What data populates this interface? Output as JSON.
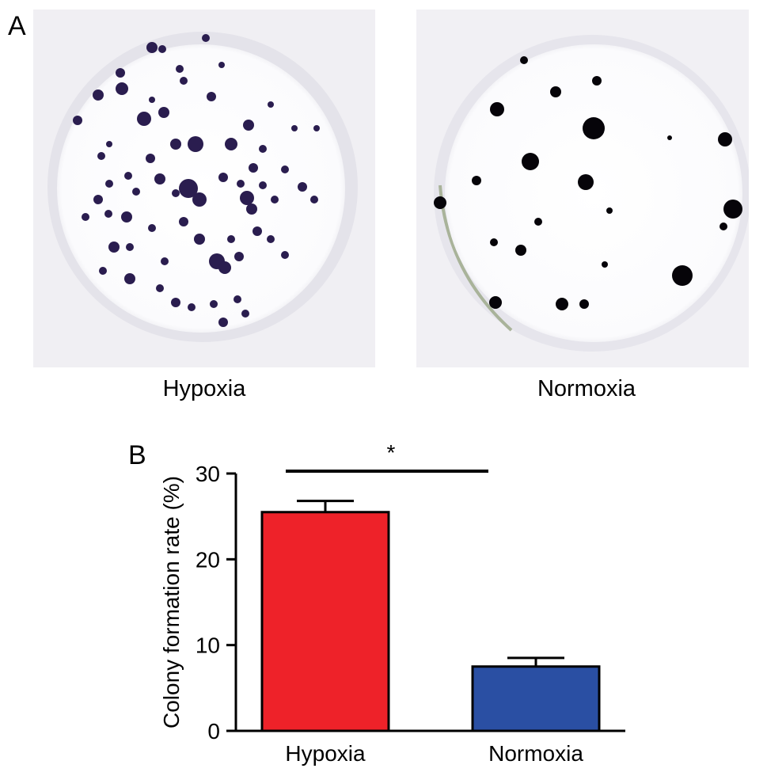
{
  "panel_a": {
    "letter": "A",
    "plates": [
      {
        "label": "Hypoxia"
      },
      {
        "label": "Normoxia"
      }
    ]
  },
  "panel_b": {
    "letter": "B"
  },
  "chart_data": {
    "type": "bar",
    "categories": [
      "Hypoxia",
      "Normoxia"
    ],
    "values": [
      25.5,
      7.5
    ],
    "errors": [
      1.3,
      1.0
    ],
    "colors": [
      "#ee2229",
      "#2a4fa3"
    ],
    "title": "",
    "xlabel": "",
    "ylabel": "Colony formation rate (%)",
    "ylim": [
      0,
      30
    ],
    "yticks": [
      0,
      10,
      20,
      30
    ],
    "significance": {
      "pair": [
        0,
        1
      ],
      "label": "*"
    },
    "grid": false
  }
}
